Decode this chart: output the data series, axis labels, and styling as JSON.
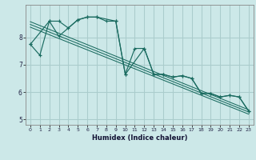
{
  "title": "",
  "xlabel": "Humidex (Indice chaleur)",
  "bg_color": "#cce8e8",
  "grid_color": "#aacccc",
  "line_color": "#1a6b60",
  "xlim": [
    -0.5,
    23.5
  ],
  "ylim": [
    4.8,
    9.2
  ],
  "yticks": [
    5,
    6,
    7,
    8
  ],
  "xticks": [
    0,
    1,
    2,
    3,
    4,
    5,
    6,
    7,
    8,
    9,
    10,
    11,
    12,
    13,
    14,
    15,
    16,
    17,
    18,
    19,
    20,
    21,
    22,
    23
  ],
  "series1_x": [
    0,
    1,
    2,
    3,
    4,
    5,
    6,
    7,
    8,
    9,
    10,
    11,
    12,
    13,
    14,
    15,
    16,
    17,
    18,
    19,
    20,
    21,
    22,
    23
  ],
  "series1_y": [
    7.75,
    7.35,
    8.6,
    8.6,
    8.35,
    8.65,
    8.75,
    8.75,
    8.6,
    8.6,
    6.65,
    7.6,
    7.6,
    6.65,
    6.65,
    6.55,
    6.6,
    6.5,
    5.95,
    5.95,
    5.82,
    5.88,
    5.82,
    5.3
  ],
  "series2_x": [
    0,
    2,
    3,
    5,
    6,
    7,
    9,
    10,
    12,
    13,
    14,
    15,
    16,
    17,
    18,
    19,
    20,
    21,
    22,
    23
  ],
  "series2_y": [
    7.75,
    8.6,
    8.05,
    8.65,
    8.75,
    8.75,
    8.6,
    6.65,
    7.6,
    6.65,
    6.65,
    6.55,
    6.6,
    6.5,
    5.95,
    5.95,
    5.82,
    5.88,
    5.82,
    5.3
  ],
  "trend_lines": [
    {
      "x": [
        0,
        23
      ],
      "y": [
        8.58,
        5.35
      ]
    },
    {
      "x": [
        0,
        23
      ],
      "y": [
        8.48,
        5.27
      ]
    },
    {
      "x": [
        0,
        23
      ],
      "y": [
        8.38,
        5.19
      ]
    }
  ]
}
